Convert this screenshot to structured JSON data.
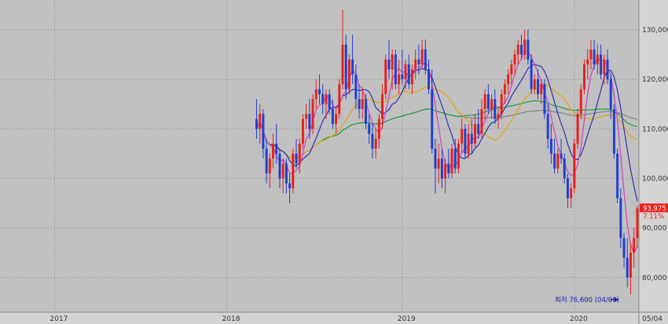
{
  "chart_data": {
    "type": "candlestick",
    "title": "",
    "xlabel": "",
    "ylabel": "",
    "ylim": [
      73000,
      136000
    ],
    "y_ticks": [
      {
        "value": 130000,
        "label": "130,000"
      },
      {
        "value": 120000,
        "label": "120,000"
      },
      {
        "value": 110000,
        "label": "110,000"
      },
      {
        "value": 100000,
        "label": "100,000"
      },
      {
        "value": 90000,
        "label": "90,000"
      },
      {
        "value": 80000,
        "label": "80,000"
      }
    ],
    "x_ticks": [
      {
        "week": 16,
        "label": "2017"
      },
      {
        "week": 68,
        "label": "2018"
      },
      {
        "week": 121,
        "label": "2019"
      },
      {
        "week": 173,
        "label": "2020"
      }
    ],
    "x_end_label": "05/04",
    "grid": true,
    "colors": {
      "up": "#e8201c",
      "down": "#1f3fd0",
      "ma5": "#d040c0",
      "ma10": "#3030b0",
      "ma20": "#e8a010",
      "ma60": "#20a040",
      "ma120": "#808080"
    },
    "current_price": {
      "value": 93975,
      "label": "93,975",
      "change_label": "7.11%",
      "color": "#e8201c"
    },
    "min_annotation": {
      "label": "최저 76,600 (04/06)",
      "value": 76600
    },
    "weeks_total": 193,
    "candles": [
      [
        112000,
        116000,
        108000,
        110000
      ],
      [
        110000,
        115000,
        107000,
        113000
      ],
      [
        113000,
        114000,
        104000,
        106000
      ],
      [
        106000,
        108000,
        99000,
        101000
      ],
      [
        101000,
        105000,
        98000,
        104000
      ],
      [
        104000,
        109000,
        102000,
        107000
      ],
      [
        107000,
        111000,
        103000,
        105000
      ],
      [
        105000,
        106000,
        98000,
        100000
      ],
      [
        100000,
        104000,
        97000,
        103000
      ],
      [
        103000,
        104000,
        97000,
        99000
      ],
      [
        99000,
        101000,
        95000,
        98000
      ],
      [
        98000,
        106000,
        97000,
        105000
      ],
      [
        105000,
        108000,
        102000,
        103000
      ],
      [
        103000,
        108000,
        101000,
        107000
      ],
      [
        107000,
        113000,
        106000,
        112000
      ],
      [
        112000,
        115000,
        110000,
        113000
      ],
      [
        113000,
        116000,
        108000,
        110000
      ],
      [
        110000,
        117000,
        109000,
        116000
      ],
      [
        116000,
        120000,
        114000,
        118000
      ],
      [
        118000,
        121000,
        115000,
        117000
      ],
      [
        117000,
        119000,
        113000,
        115000
      ],
      [
        115000,
        118000,
        112000,
        117000
      ],
      [
        117000,
        118000,
        113000,
        114000
      ],
      [
        114000,
        116000,
        110000,
        111000
      ],
      [
        111000,
        114000,
        109000,
        113000
      ],
      [
        113000,
        120000,
        112000,
        119000
      ],
      [
        119000,
        134000,
        118000,
        127000
      ],
      [
        127000,
        129000,
        116000,
        118000
      ],
      [
        118000,
        125000,
        117000,
        124000
      ],
      [
        124000,
        129000,
        119000,
        121000
      ],
      [
        121000,
        123000,
        114000,
        116000
      ],
      [
        116000,
        119000,
        112000,
        114000
      ],
      [
        114000,
        118000,
        112000,
        116000
      ],
      [
        116000,
        117000,
        110000,
        111000
      ],
      [
        111000,
        113000,
        107000,
        109000
      ],
      [
        109000,
        111000,
        104000,
        106000
      ],
      [
        106000,
        110000,
        104000,
        108000
      ],
      [
        108000,
        113000,
        106000,
        112000
      ],
      [
        112000,
        119000,
        110000,
        117000
      ],
      [
        117000,
        125000,
        116000,
        124000
      ],
      [
        124000,
        128000,
        120000,
        122000
      ],
      [
        122000,
        126000,
        118000,
        125000
      ],
      [
        125000,
        126000,
        118000,
        119000
      ],
      [
        119000,
        124000,
        117000,
        121000
      ],
      [
        121000,
        126000,
        119000,
        120000
      ],
      [
        120000,
        124000,
        118000,
        123000
      ],
      [
        123000,
        125000,
        118000,
        119000
      ],
      [
        119000,
        123000,
        117000,
        122000
      ],
      [
        122000,
        126000,
        120000,
        124000
      ],
      [
        124000,
        127000,
        121000,
        123000
      ],
      [
        123000,
        128000,
        122000,
        126000
      ],
      [
        126000,
        128000,
        121000,
        122000
      ],
      [
        122000,
        124000,
        117000,
        118000
      ],
      [
        118000,
        122000,
        105000,
        106000
      ],
      [
        106000,
        108000,
        97000,
        102000
      ],
      [
        102000,
        107000,
        99000,
        104000
      ],
      [
        104000,
        106000,
        98000,
        100000
      ],
      [
        100000,
        104000,
        97000,
        103000
      ],
      [
        103000,
        106000,
        100000,
        101000
      ],
      [
        101000,
        107000,
        100000,
        106000
      ],
      [
        106000,
        108000,
        101000,
        102000
      ],
      [
        102000,
        108000,
        101000,
        107000
      ],
      [
        107000,
        112000,
        105000,
        110000
      ],
      [
        110000,
        111000,
        104000,
        105000
      ],
      [
        105000,
        111000,
        104000,
        109000
      ],
      [
        109000,
        112000,
        105000,
        107000
      ],
      [
        107000,
        113000,
        106000,
        111000
      ],
      [
        111000,
        114000,
        108000,
        109000
      ],
      [
        109000,
        116000,
        108000,
        114000
      ],
      [
        114000,
        118000,
        112000,
        117000
      ],
      [
        117000,
        119000,
        113000,
        114000
      ],
      [
        114000,
        117000,
        112000,
        116000
      ],
      [
        116000,
        118000,
        111000,
        112000
      ],
      [
        112000,
        114000,
        110000,
        113000
      ],
      [
        113000,
        118000,
        112000,
        117000
      ],
      [
        117000,
        120000,
        115000,
        119000
      ],
      [
        119000,
        122000,
        117000,
        121000
      ],
      [
        121000,
        124000,
        119000,
        123000
      ],
      [
        123000,
        126000,
        121000,
        125000
      ],
      [
        125000,
        128000,
        123000,
        127000
      ],
      [
        127000,
        129000,
        124000,
        125000
      ],
      [
        125000,
        130000,
        124000,
        128000
      ],
      [
        128000,
        130000,
        123000,
        124000
      ],
      [
        124000,
        125000,
        117000,
        118000
      ],
      [
        118000,
        121000,
        117000,
        120000
      ],
      [
        120000,
        122000,
        116000,
        117000
      ],
      [
        117000,
        120000,
        115000,
        119000
      ],
      [
        119000,
        120000,
        112000,
        113000
      ],
      [
        113000,
        115000,
        106000,
        108000
      ],
      [
        108000,
        111000,
        103000,
        105000
      ],
      [
        105000,
        108000,
        101000,
        102000
      ],
      [
        102000,
        106000,
        101000,
        105000
      ],
      [
        105000,
        108000,
        103000,
        104000
      ],
      [
        104000,
        105000,
        99000,
        100000
      ],
      [
        100000,
        101000,
        94000,
        96000
      ],
      [
        96000,
        99000,
        94000,
        98000
      ],
      [
        98000,
        108000,
        97000,
        107000
      ],
      [
        107000,
        114000,
        106000,
        113000
      ],
      [
        113000,
        119000,
        112000,
        118000
      ],
      [
        118000,
        124000,
        117000,
        123000
      ],
      [
        123000,
        126000,
        120000,
        124000
      ],
      [
        124000,
        128000,
        122000,
        126000
      ],
      [
        126000,
        128000,
        122000,
        123000
      ],
      [
        123000,
        127000,
        121000,
        125000
      ],
      [
        125000,
        127000,
        120000,
        121000
      ],
      [
        121000,
        125000,
        119000,
        124000
      ],
      [
        124000,
        126000,
        119000,
        120000
      ],
      [
        120000,
        121000,
        112000,
        114000
      ],
      [
        114000,
        115000,
        104000,
        105000
      ],
      [
        105000,
        106000,
        95000,
        96000
      ],
      [
        96000,
        98000,
        86000,
        88000
      ],
      [
        88000,
        89000,
        82000,
        84000
      ],
      [
        84000,
        88000,
        78000,
        80000
      ],
      [
        80000,
        87000,
        76600,
        85000
      ],
      [
        85000,
        90000,
        82000,
        88000
      ],
      [
        88000,
        94500,
        86000,
        93975
      ]
    ],
    "note": "candles are weekly [open, high, low, close] values approximated from the chart; only the visible right portion is shown"
  }
}
